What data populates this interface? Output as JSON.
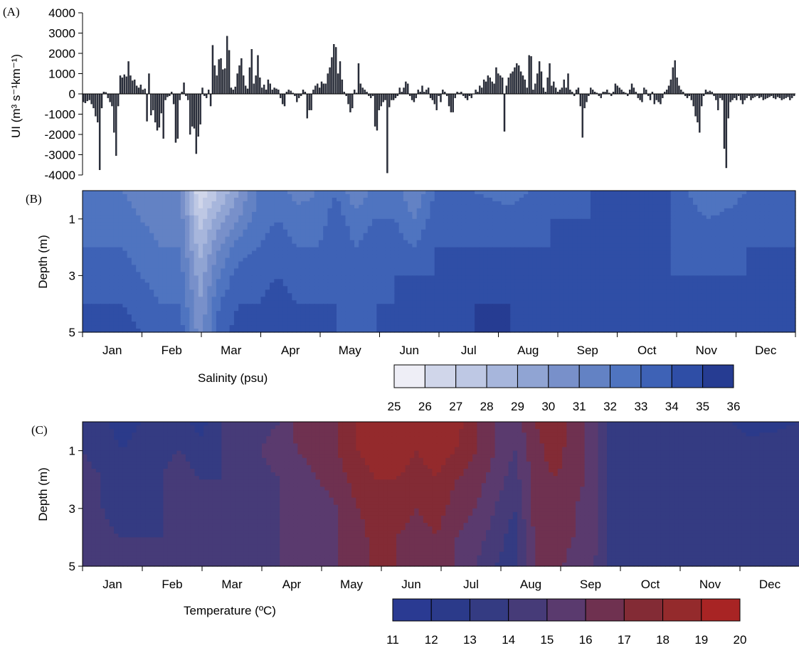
{
  "panel_labels": [
    "(A)",
    "(B)",
    "(C)"
  ],
  "chart_data": [
    {
      "type": "bar",
      "panel": "(A)",
      "title": "",
      "ylabel": "UI (m³ s⁻¹km⁻¹)",
      "ylim": [
        -4000,
        4000
      ],
      "yticks": [
        "4000",
        "3000",
        "2000",
        "1000",
        "0",
        "-1000",
        "-2000",
        "-3000",
        "-4000"
      ],
      "months": [
        "Jan",
        "Feb",
        "Mar",
        "Apr",
        "May",
        "Jun",
        "Jul",
        "Aug",
        "Sep",
        "Oct",
        "Nov",
        "Dec"
      ],
      "bar_color": "#2b3040",
      "x_range_days": [
        1,
        365
      ],
      "series": [
        {
          "values": [
            -400,
            -450,
            -350,
            -300,
            -500,
            -700,
            -1100,
            -1400,
            -3750,
            -700,
            100,
            80,
            -200,
            -400,
            -600,
            -1900,
            -3050,
            -600,
            900,
            800,
            950,
            850,
            1600,
            900,
            650,
            700,
            400,
            300,
            450,
            200,
            250,
            -1350,
            1000,
            -1050,
            -800,
            -1400,
            -1800,
            -1650,
            -950,
            -2200,
            -300,
            -150,
            -100,
            100,
            -500,
            -2400,
            -2200,
            -300,
            100,
            550,
            -100,
            -300,
            -2000,
            -1600,
            -1700,
            -2950,
            -2100,
            -1500,
            300,
            -100,
            -200,
            200,
            -600,
            2400,
            1400,
            900,
            1700,
            1750,
            1200,
            1250,
            2850,
            2150,
            300,
            200,
            350,
            1000,
            1400,
            1750,
            900,
            400,
            250,
            1300,
            2200,
            500,
            900,
            1900,
            800,
            300,
            450,
            200,
            700,
            500,
            200,
            300,
            250,
            200,
            -200,
            -500,
            -600,
            100,
            200,
            150,
            50,
            -100,
            -400,
            -200,
            -100,
            200,
            100,
            -1200,
            -800,
            -800,
            200,
            400,
            500,
            300,
            600,
            500,
            500,
            1000,
            1300,
            1800,
            2450,
            2300,
            1000,
            1600,
            700,
            100,
            -100,
            -500,
            -900,
            -700,
            200,
            50,
            1500,
            500,
            300,
            200,
            100,
            -100,
            -200,
            -100,
            -1600,
            -1800,
            -800,
            -600,
            -400,
            -300,
            -3900,
            -650,
            -300,
            -300,
            -200,
            -100,
            300,
            100,
            300,
            600,
            500,
            -100,
            -300,
            -400,
            -200,
            200,
            100,
            400,
            100,
            200,
            300,
            -200,
            -300,
            -500,
            -800,
            -100,
            -400,
            200,
            100,
            -100,
            -600,
            -900,
            -900,
            -200,
            100,
            50,
            100,
            -100,
            -200,
            -300,
            -100,
            -200,
            0,
            200,
            100,
            400,
            300,
            700,
            600,
            900,
            800,
            600,
            500,
            1300,
            1000,
            900,
            800,
            -1850,
            400,
            800,
            1000,
            1100,
            1300,
            1500,
            1400,
            1100,
            900,
            700,
            300,
            1900,
            1850,
            200,
            500,
            1000,
            1600,
            1100,
            300,
            100,
            800,
            1500,
            400,
            600,
            300,
            100,
            200,
            300,
            700,
            300,
            1000,
            200,
            100,
            -100,
            200,
            300,
            -600,
            -2150,
            -700,
            -400,
            -100,
            300,
            200,
            100,
            50,
            -100,
            -200,
            100,
            100,
            200,
            50,
            -100,
            100,
            500,
            400,
            300,
            200,
            100,
            50,
            -100,
            200,
            500,
            300,
            100,
            -200,
            -300,
            -400,
            300,
            200,
            -100,
            -300,
            100,
            -500,
            -300,
            -400,
            -500,
            -200,
            100,
            200,
            400,
            700,
            1300,
            1650,
            800,
            400,
            200,
            100,
            -100,
            -200,
            -100,
            -300,
            -600,
            -1100,
            -1400,
            -1900,
            -600,
            -100,
            200,
            100,
            150,
            100,
            -100,
            -300,
            -800,
            -200,
            -300,
            -2700,
            -3650,
            -1200,
            -400,
            -300,
            -200,
            -300,
            -100,
            -300,
            -500,
            -300,
            -200,
            -100,
            -300,
            -200,
            -150,
            -100,
            -200,
            -150,
            -300,
            -250,
            -200,
            -150,
            -100,
            -200,
            -250,
            -150,
            -200,
            -300,
            -250,
            -200,
            -150,
            -300,
            -200,
            -100
          ]
        }
      ]
    },
    {
      "type": "heatmap",
      "panel": "(B)",
      "title": "",
      "ylabel": "Depth (m)",
      "yticks": [
        "1",
        "3",
        "5"
      ],
      "ylim": [
        0,
        5
      ],
      "months": [
        "Jan",
        "Feb",
        "Mar",
        "Apr",
        "May",
        "Jun",
        "Jul",
        "Aug",
        "Sep",
        "Oct",
        "Nov",
        "Dec"
      ],
      "colorbar_label": "Salinity (psu)",
      "colorbar_ticks": [
        "25",
        "26",
        "27",
        "28",
        "29",
        "30",
        "31",
        "32",
        "33",
        "34",
        "35",
        "36"
      ],
      "levels": [
        25,
        26,
        27,
        28,
        29,
        30,
        31,
        32,
        33,
        34,
        35,
        36
      ],
      "colors": [
        "#eeeef6",
        "#d0d6ea",
        "#bec8e4",
        "#a7b6dc",
        "#90a4d3",
        "#7890ca",
        "#6382c4",
        "#4f74c0",
        "#3e62b6",
        "#2f4ea6",
        "#263c92"
      ],
      "x_days": [
        0,
        20,
        40,
        50,
        60,
        70,
        80,
        90,
        100,
        110,
        120,
        130,
        140,
        150,
        160,
        170,
        180,
        200,
        220,
        240,
        260,
        280,
        300,
        320,
        340,
        365
      ],
      "depths": [
        0,
        1,
        2,
        3,
        4,
        5
      ],
      "values": [
        [
          32.5,
          32.0,
          31.0,
          31.0,
          26.0,
          28.0,
          30.0,
          32.0,
          32.5,
          31.5,
          32.0,
          33.0,
          31.0,
          32.5,
          32.5,
          31.0,
          33.0,
          33.0,
          32.5,
          33.5,
          34.0,
          34.0,
          34.0,
          32.0,
          33.0,
          33.5
        ],
        [
          33.0,
          32.5,
          31.5,
          31.5,
          27.5,
          29.5,
          31.0,
          32.5,
          33.0,
          32.5,
          32.5,
          33.5,
          32.5,
          33.0,
          33.0,
          32.0,
          33.5,
          33.5,
          33.5,
          34.0,
          34.0,
          34.0,
          34.0,
          33.0,
          33.5,
          33.5
        ],
        [
          33.0,
          33.0,
          32.0,
          32.0,
          28.5,
          31.0,
          32.5,
          33.0,
          33.5,
          33.0,
          33.0,
          33.5,
          33.0,
          33.5,
          33.5,
          33.0,
          34.0,
          34.0,
          34.0,
          34.0,
          34.0,
          34.0,
          34.0,
          33.5,
          34.0,
          34.0
        ],
        [
          33.5,
          33.5,
          32.5,
          32.5,
          29.5,
          32.0,
          33.5,
          33.5,
          34.0,
          33.5,
          33.5,
          34.0,
          33.5,
          33.5,
          34.0,
          34.0,
          34.0,
          34.5,
          34.5,
          34.0,
          34.0,
          34.0,
          34.0,
          34.0,
          34.0,
          34.0
        ],
        [
          34.0,
          34.0,
          33.0,
          33.0,
          30.0,
          33.0,
          34.0,
          34.0,
          34.5,
          34.0,
          34.0,
          34.0,
          33.5,
          34.0,
          34.0,
          34.0,
          34.0,
          35.0,
          35.0,
          34.0,
          34.0,
          34.0,
          34.0,
          34.0,
          34.0,
          34.5
        ],
        [
          34.5,
          34.5,
          33.5,
          33.5,
          30.5,
          33.5,
          34.5,
          34.5,
          35.0,
          34.5,
          34.0,
          34.0,
          33.5,
          34.0,
          34.0,
          34.0,
          34.0,
          35.0,
          35.0,
          34.0,
          34.0,
          34.0,
          34.0,
          34.0,
          34.0,
          35.0
        ]
      ]
    },
    {
      "type": "heatmap",
      "panel": "(C)",
      "title": "",
      "ylabel": "Depth (m)",
      "yticks": [
        "1",
        "3",
        "5"
      ],
      "ylim": [
        0,
        5
      ],
      "months": [
        "Jan",
        "Feb",
        "Mar",
        "Apr",
        "May",
        "Jun",
        "Jul",
        "Aug",
        "Sep",
        "Oct",
        "Nov",
        "Dec"
      ],
      "colorbar_label": "Temperature (ºC)",
      "colorbar_ticks": [
        "11",
        "12",
        "13",
        "14",
        "15",
        "16",
        "17",
        "18",
        "19",
        "20"
      ],
      "levels": [
        11,
        12,
        13,
        14,
        15,
        16,
        17,
        18,
        19,
        20
      ],
      "colors": [
        "#2a3a92",
        "#2b3a8a",
        "#343b82",
        "#463b78",
        "#5a3a6e",
        "#6f3150",
        "#832b35",
        "#942a2c",
        "#a82424"
      ],
      "x_days": [
        0,
        20,
        40,
        50,
        60,
        70,
        80,
        90,
        100,
        110,
        120,
        130,
        140,
        150,
        160,
        170,
        180,
        190,
        200,
        210,
        220,
        230,
        240,
        250,
        260,
        270,
        280,
        290,
        300,
        320,
        340,
        365
      ],
      "depths": [
        0,
        1,
        2,
        3,
        4,
        5
      ],
      "values": [
        [
          14.0,
          12.5,
          13.5,
          13.5,
          12.5,
          14.0,
          14.5,
          14.5,
          15.0,
          16.5,
          16.5,
          17.0,
          18.0,
          18.5,
          18.5,
          18.5,
          19.0,
          18.5,
          17.0,
          16.0,
          15.5,
          17.0,
          18.0,
          16.5,
          15.5,
          13.5,
          13.5,
          13.5,
          13.0,
          13.5,
          12.5,
          13.0
        ],
        [
          14.0,
          13.0,
          13.8,
          14.0,
          13.5,
          14.0,
          14.5,
          15.0,
          15.5,
          16.0,
          16.5,
          17.0,
          18.0,
          18.5,
          18.5,
          18.0,
          18.5,
          18.0,
          17.0,
          16.0,
          15.0,
          16.5,
          17.5,
          16.5,
          15.5,
          13.5,
          13.5,
          13.5,
          13.5,
          13.5,
          13.5,
          13.5
        ],
        [
          14.5,
          13.5,
          14.0,
          14.5,
          14.0,
          14.0,
          14.5,
          14.5,
          15.0,
          15.5,
          16.0,
          16.5,
          17.5,
          18.0,
          18.0,
          17.5,
          18.0,
          17.0,
          16.5,
          15.5,
          14.5,
          16.5,
          17.0,
          16.5,
          15.5,
          13.5,
          13.5,
          13.5,
          13.5,
          13.5,
          13.5,
          13.5
        ],
        [
          14.5,
          13.5,
          14.0,
          14.5,
          14.0,
          14.0,
          14.5,
          14.5,
          15.0,
          15.0,
          15.5,
          16.0,
          17.0,
          17.5,
          17.5,
          17.0,
          17.5,
          16.5,
          16.0,
          15.0,
          14.0,
          16.5,
          16.5,
          16.0,
          15.5,
          13.5,
          13.5,
          13.5,
          13.5,
          13.5,
          13.5,
          13.5
        ],
        [
          14.5,
          14.0,
          14.0,
          14.5,
          14.5,
          14.5,
          14.0,
          14.5,
          15.0,
          15.0,
          15.0,
          16.0,
          16.5,
          17.5,
          17.0,
          16.5,
          17.0,
          16.0,
          15.5,
          14.5,
          13.5,
          16.0,
          16.5,
          16.0,
          15.5,
          13.5,
          13.5,
          13.5,
          13.5,
          13.5,
          13.5,
          13.5
        ],
        [
          14.5,
          14.0,
          14.0,
          14.5,
          14.5,
          14.5,
          14.0,
          14.5,
          15.0,
          15.0,
          15.0,
          16.0,
          16.5,
          17.5,
          17.0,
          16.0,
          16.5,
          16.0,
          15.0,
          14.0,
          13.5,
          16.0,
          16.5,
          15.5,
          15.0,
          13.5,
          13.5,
          13.5,
          13.5,
          13.5,
          13.5,
          13.5
        ]
      ]
    }
  ]
}
